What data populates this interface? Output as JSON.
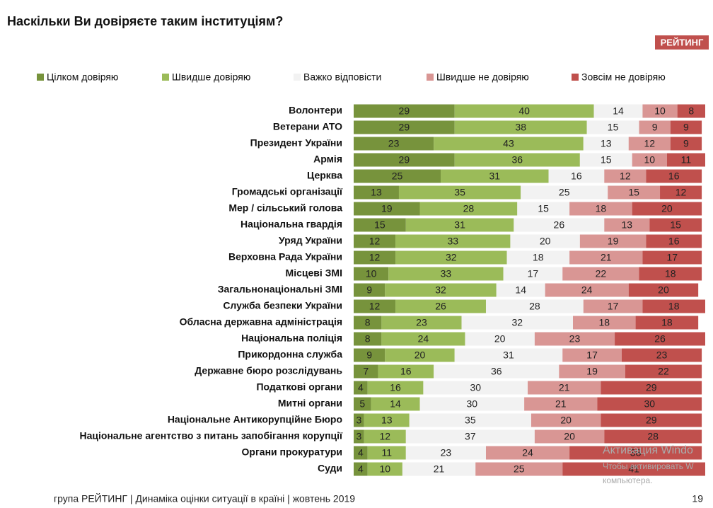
{
  "chart_data": {
    "type": "stacked-bar-horizontal",
    "title": "Наскільки Ви довіряєте таким інституціям?",
    "logo": "РЕЙТИНГ",
    "footer": "група РЕЙТИНГ | Динаміка оцінки ситуації в країні | жовтень 2019",
    "page_number": "19",
    "watermark": [
      "Активация Windo",
      "Чтобы активировать W",
      "компьютера."
    ],
    "xlim": [
      0,
      101
    ],
    "categories": [
      "Волонтери",
      "Ветерани АТО",
      "Президент України",
      "Армія",
      "Церква",
      "Громадські організації",
      "Мер / сільський голова",
      "Національна гвардія",
      "Уряд України",
      "Верховна Рада України",
      "Місцеві ЗМІ",
      "Загальнонаціональні ЗМІ",
      "Служба безпеки України",
      "Обласна державна адміністрація",
      "Національна поліція",
      "Прикордонна служба",
      "Державне бюро розслідувань",
      "Податкові органи",
      "Митні органи",
      "Національне Антикорупційне Бюро",
      "Національне агентство з питань запобігання корупції",
      "Органи прокуратури",
      "Суди"
    ],
    "series": [
      {
        "name": "Цілком довіряю",
        "color": "#77933c",
        "values": [
          29,
          29,
          23,
          29,
          25,
          13,
          19,
          15,
          12,
          12,
          10,
          9,
          12,
          8,
          8,
          9,
          7,
          4,
          5,
          3,
          3,
          4,
          4
        ]
      },
      {
        "name": "Швидше довіряю",
        "color": "#9bbb59",
        "values": [
          40,
          38,
          43,
          36,
          31,
          35,
          28,
          31,
          33,
          32,
          33,
          32,
          26,
          23,
          24,
          20,
          16,
          16,
          14,
          13,
          12,
          11,
          10
        ]
      },
      {
        "name": "Важко відповісти",
        "color": "#f2f2f2",
        "values": [
          14,
          15,
          13,
          15,
          16,
          25,
          15,
          26,
          20,
          18,
          17,
          14,
          28,
          32,
          20,
          31,
          36,
          30,
          30,
          35,
          37,
          23,
          21
        ]
      },
      {
        "name": "Швидше не довіряю",
        "color": "#d99694",
        "values": [
          10,
          9,
          12,
          10,
          12,
          15,
          18,
          13,
          19,
          21,
          22,
          24,
          17,
          18,
          23,
          17,
          19,
          21,
          21,
          20,
          20,
          24,
          25
        ]
      },
      {
        "name": "Зовсім не довіряю",
        "color": "#c0504d",
        "values": [
          8,
          9,
          9,
          11,
          16,
          12,
          20,
          15,
          16,
          17,
          18,
          20,
          18,
          18,
          26,
          23,
          22,
          29,
          30,
          29,
          28,
          38,
          41
        ]
      }
    ]
  }
}
